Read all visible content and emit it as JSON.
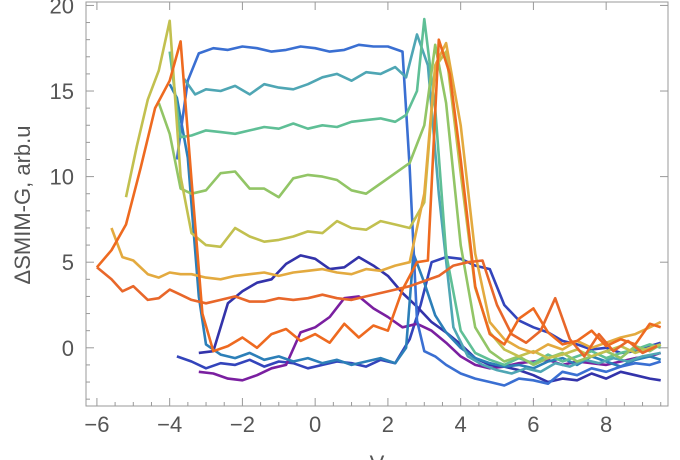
{
  "chart_data": {
    "type": "line",
    "title": "",
    "ylabel": "ΔSMIM-G, arb.u",
    "xlabel": "V",
    "xlim": [
      -6.3,
      9.7
    ],
    "ylim": [
      -3.4,
      20.2
    ],
    "xticks": [
      -6,
      -4,
      -2,
      0,
      2,
      4,
      6,
      8
    ],
    "yticks": [
      0,
      5,
      10,
      15,
      20
    ],
    "xtick_labels": [
      "−6",
      "−4",
      "−2",
      "0",
      "2",
      "4",
      "6",
      "8"
    ],
    "ytick_labels": [
      "0",
      "5",
      "10",
      "15",
      "20"
    ],
    "grid": false,
    "frame": true,
    "series": [
      {
        "color": "#3344bb",
        "x": [
          -3.8,
          -3.4,
          -3.0,
          -2.6,
          -2.2,
          -1.8,
          -1.4,
          -1.0,
          -0.6,
          -0.2,
          0.2,
          0.6,
          1.0,
          1.4,
          1.8,
          2.2,
          2.6,
          2.9,
          3.2,
          3.6,
          4.0,
          4.4,
          4.8,
          5.2,
          5.6,
          6.0,
          6.4,
          6.8,
          7.2,
          7.6,
          8.0,
          8.4,
          8.8,
          9.2,
          9.5
        ],
        "y": [
          -0.5,
          -0.8,
          -1.2,
          -0.9,
          -1.0,
          -0.7,
          -1.1,
          -0.8,
          -0.9,
          -1.2,
          -1.0,
          -0.8,
          -0.9,
          -1.1,
          -0.7,
          -0.9,
          0.5,
          2.5,
          5.0,
          5.3,
          5.2,
          4.8,
          4.6,
          2.5,
          1.6,
          1.2,
          0.9,
          0.4,
          0.2,
          -0.1,
          0.0,
          -0.3,
          -0.2,
          0.1,
          0.3
        ]
      },
      {
        "color": "#7a1fa0",
        "x": [
          -3.2,
          -2.8,
          -2.4,
          -2.0,
          -1.6,
          -1.2,
          -0.8,
          -0.4,
          0.0,
          0.4,
          0.8,
          1.2,
          1.6,
          2.0,
          2.4,
          2.8,
          3.2,
          3.6,
          4.0,
          4.4,
          4.8,
          5.2,
          5.6,
          6.0,
          6.4,
          6.8,
          7.2,
          7.6,
          8.0,
          8.4,
          8.8,
          9.2,
          9.5
        ],
        "y": [
          -1.4,
          -1.5,
          -1.8,
          -1.9,
          -1.6,
          -1.2,
          -1.0,
          0.9,
          1.2,
          1.8,
          2.9,
          3.0,
          2.3,
          1.8,
          1.2,
          1.4,
          1.0,
          0.3,
          -0.5,
          -1.0,
          -1.2,
          -1.1,
          -0.9,
          -0.8,
          -0.7,
          -1.0,
          -0.8,
          -0.9,
          -1.0,
          -0.8,
          -0.6,
          -0.5,
          -0.3
        ]
      },
      {
        "color": "#3333aa",
        "x": [
          -3.2,
          -2.8,
          -2.4,
          -2.0,
          -1.6,
          -1.2,
          -0.8,
          -0.4,
          0.0,
          0.4,
          0.8,
          1.2,
          1.6,
          2.0,
          2.4,
          2.8,
          3.2,
          3.6,
          4.0,
          4.4,
          4.8,
          5.2,
          5.6,
          6.0,
          6.4,
          6.8,
          7.2,
          7.6,
          8.0,
          8.4,
          8.8,
          9.2,
          9.5
        ],
        "y": [
          -0.3,
          -0.2,
          2.6,
          3.3,
          3.8,
          4.0,
          4.9,
          5.4,
          5.2,
          4.6,
          4.7,
          5.3,
          4.8,
          4.2,
          3.2,
          2.4,
          1.5,
          0.9,
          0.2,
          -0.6,
          -1.0,
          -1.1,
          -1.3,
          -1.6,
          -2.0,
          -1.8,
          -1.9,
          -1.5,
          -1.8,
          -1.4,
          -1.6,
          -1.8,
          -1.9
        ]
      },
      {
        "color": "#2c7fb8",
        "x": [
          -4.0,
          -3.8,
          -3.5,
          -3.2,
          -3.0,
          -2.6,
          -2.2,
          -1.8,
          -1.4,
          -1.0,
          -0.6,
          -0.2,
          0.2,
          0.6,
          1.0,
          1.4,
          1.8,
          2.2,
          2.5,
          2.7,
          3.0,
          3.3,
          3.6,
          4.0,
          4.4,
          4.8,
          5.2,
          5.6,
          6.0,
          6.4,
          6.8,
          7.2,
          7.6,
          8.0,
          8.4,
          8.8,
          9.2,
          9.5
        ],
        "y": [
          15.4,
          14.6,
          11.1,
          3.0,
          0.2,
          -0.4,
          -0.6,
          -0.3,
          -0.7,
          -0.5,
          -0.8,
          -0.6,
          -0.9,
          -0.7,
          -1.0,
          -0.8,
          -0.6,
          -0.9,
          0.0,
          5.5,
          3.8,
          1.9,
          0.9,
          0.0,
          -0.6,
          -0.9,
          -1.1,
          -1.0,
          -1.2,
          -0.8,
          -0.6,
          -1.0,
          -0.5,
          -0.8,
          -1.1,
          -0.7,
          -0.5,
          -0.7
        ]
      },
      {
        "color": "#3a6fd2",
        "x": [
          -3.8,
          -3.5,
          -3.2,
          -2.8,
          -2.4,
          -2.0,
          -1.6,
          -1.2,
          -0.8,
          -0.4,
          0.0,
          0.4,
          0.8,
          1.2,
          1.6,
          2.0,
          2.4,
          2.6,
          2.8,
          3.0,
          3.3,
          3.6,
          4.0,
          4.4,
          4.8,
          5.2,
          5.6,
          6.0,
          6.4,
          6.8,
          7.2,
          7.6,
          8.0,
          8.4,
          8.8,
          9.2,
          9.5
        ],
        "y": [
          11.0,
          15.6,
          17.2,
          17.5,
          17.4,
          17.6,
          17.5,
          17.3,
          17.4,
          17.6,
          17.5,
          17.3,
          17.4,
          17.7,
          17.6,
          17.6,
          17.3,
          10.5,
          1.6,
          -0.2,
          -0.5,
          -1.0,
          -1.5,
          -1.8,
          -2.0,
          -2.2,
          -1.8,
          -1.9,
          -2.1,
          -1.4,
          -1.6,
          -1.2,
          -1.4,
          -1.1,
          -0.9,
          -1.0,
          -0.8
        ]
      },
      {
        "color": "#4fa6b4",
        "x": [
          -3.6,
          -3.3,
          -3.0,
          -2.6,
          -2.2,
          -1.8,
          -1.4,
          -1.0,
          -0.6,
          -0.2,
          0.2,
          0.6,
          1.0,
          1.4,
          1.8,
          2.2,
          2.5,
          2.8,
          3.1,
          3.4,
          3.8,
          4.2,
          4.6,
          5.0,
          5.4,
          5.8,
          6.2,
          6.6,
          7.0,
          7.4,
          7.8,
          8.2,
          8.6,
          9.0,
          9.5
        ],
        "y": [
          15.7,
          14.8,
          15.1,
          15.0,
          15.3,
          14.8,
          15.4,
          15.2,
          15.1,
          15.4,
          15.8,
          16.0,
          15.6,
          16.1,
          16.0,
          16.4,
          15.8,
          18.3,
          16.5,
          9.0,
          1.2,
          -0.5,
          -1.0,
          -1.3,
          -1.5,
          -1.2,
          -1.4,
          -0.9,
          -1.1,
          -0.7,
          -0.9,
          -0.6,
          -0.8,
          -0.5,
          -0.3
        ]
      },
      {
        "color": "#5fbf96",
        "x": [
          -4.0,
          -3.7,
          -3.4,
          -3.0,
          -2.6,
          -2.2,
          -1.8,
          -1.4,
          -1.0,
          -0.6,
          -0.2,
          0.2,
          0.6,
          1.0,
          1.4,
          1.8,
          2.2,
          2.5,
          2.8,
          3.0,
          3.3,
          3.6,
          4.0,
          4.4,
          4.8,
          5.2,
          5.6,
          6.0,
          6.4,
          6.8,
          7.2,
          7.6,
          8.0,
          8.4,
          8.8,
          9.2,
          9.5
        ],
        "y": [
          17.3,
          12.3,
          12.4,
          12.7,
          12.6,
          12.5,
          12.7,
          12.9,
          12.8,
          13.1,
          12.8,
          13.0,
          12.9,
          13.2,
          13.3,
          13.4,
          13.2,
          13.6,
          15.0,
          19.2,
          14.0,
          5.5,
          1.0,
          -0.3,
          -0.7,
          -1.0,
          -0.6,
          -0.9,
          -0.4,
          -0.8,
          -0.5,
          -0.2,
          -0.6,
          -0.3,
          -0.1,
          0.2,
          0.0
        ]
      },
      {
        "color": "#92c566",
        "x": [
          -4.3,
          -4.0,
          -3.7,
          -3.4,
          -3.0,
          -2.6,
          -2.2,
          -1.8,
          -1.4,
          -1.0,
          -0.6,
          -0.2,
          0.2,
          0.6,
          1.0,
          1.4,
          1.8,
          2.2,
          2.6,
          3.0,
          3.3,
          3.6,
          4.0,
          4.4,
          4.8,
          5.2,
          5.6,
          6.0,
          6.4,
          6.8,
          7.2,
          7.6,
          8.0,
          8.4,
          8.8,
          9.2,
          9.5
        ],
        "y": [
          14.3,
          12.5,
          9.3,
          9.0,
          9.2,
          10.2,
          10.3,
          9.3,
          9.3,
          8.8,
          9.9,
          10.1,
          10.0,
          9.8,
          9.2,
          9.0,
          9.6,
          10.2,
          10.8,
          13.0,
          17.7,
          14.3,
          6.0,
          1.2,
          -0.2,
          -0.8,
          -0.5,
          -1.0,
          -0.6,
          -0.3,
          -0.8,
          -0.5,
          -0.2,
          -0.6,
          0.1,
          -0.2,
          0.2
        ]
      },
      {
        "color": "#c2c04f",
        "x": [
          -5.2,
          -4.9,
          -4.6,
          -4.3,
          -4.0,
          -3.7,
          -3.4,
          -3.0,
          -2.6,
          -2.2,
          -1.8,
          -1.4,
          -1.0,
          -0.6,
          -0.2,
          0.2,
          0.6,
          1.0,
          1.4,
          1.8,
          2.2,
          2.6,
          3.0,
          3.3,
          3.6,
          4.0,
          4.4,
          4.8,
          5.2,
          5.6,
          6.0,
          6.4,
          6.8,
          7.2,
          7.6,
          8.0,
          8.4,
          8.8,
          9.2,
          9.5
        ],
        "y": [
          8.8,
          11.8,
          14.5,
          16.2,
          19.1,
          10.0,
          6.7,
          6.0,
          5.9,
          7.0,
          6.5,
          6.2,
          6.3,
          6.5,
          6.8,
          6.7,
          7.4,
          7.0,
          6.9,
          7.4,
          7.2,
          7.0,
          8.5,
          16.4,
          17.3,
          10.2,
          3.5,
          0.9,
          -0.1,
          -0.5,
          -0.2,
          -0.6,
          -0.4,
          -0.1,
          -0.5,
          -0.2,
          0.1,
          -0.3,
          0.0,
          0.2
        ]
      },
      {
        "color": "#e3aa3f",
        "x": [
          -5.6,
          -5.3,
          -5.0,
          -4.6,
          -4.3,
          -4.0,
          -3.7,
          -3.4,
          -3.0,
          -2.6,
          -2.2,
          -1.8,
          -1.4,
          -1.0,
          -0.6,
          -0.2,
          0.2,
          0.6,
          1.0,
          1.4,
          1.8,
          2.2,
          2.6,
          3.0,
          3.3,
          3.6,
          4.0,
          4.4,
          4.8,
          5.2,
          5.6,
          6.0,
          6.4,
          6.8,
          7.2,
          7.6,
          8.0,
          8.4,
          8.8,
          9.2,
          9.5
        ],
        "y": [
          7.0,
          5.3,
          5.1,
          4.3,
          4.1,
          4.4,
          4.3,
          4.3,
          4.1,
          4.0,
          4.2,
          4.3,
          4.4,
          4.2,
          4.4,
          4.5,
          4.6,
          4.4,
          4.3,
          4.6,
          4.5,
          4.8,
          5.0,
          9.0,
          16.5,
          17.8,
          13.0,
          5.5,
          1.5,
          0.5,
          0.0,
          -0.3,
          0.2,
          -0.1,
          0.4,
          0.0,
          0.3,
          0.6,
          0.8,
          1.2,
          1.5
        ]
      },
      {
        "color": "#e8672a",
        "x": [
          -6.0,
          -5.6,
          -5.3,
          -5.0,
          -4.6,
          -4.3,
          -4.0,
          -3.7,
          -3.4,
          -3.0,
          -2.6,
          -2.2,
          -1.8,
          -1.4,
          -1.0,
          -0.6,
          -0.2,
          0.2,
          0.6,
          1.0,
          1.4,
          1.8,
          2.2,
          2.6,
          3.0,
          3.4,
          3.8,
          4.2,
          4.6,
          5.0,
          5.4,
          5.8,
          6.2,
          6.6,
          7.0,
          7.4,
          7.8,
          8.2,
          8.6,
          9.0,
          9.4
        ],
        "y": [
          4.7,
          4.0,
          3.3,
          3.6,
          2.8,
          2.9,
          3.4,
          3.1,
          2.8,
          2.6,
          2.8,
          3.0,
          2.7,
          2.7,
          2.9,
          2.8,
          2.9,
          3.1,
          2.9,
          2.8,
          3.0,
          3.2,
          3.4,
          3.6,
          3.9,
          4.2,
          4.8,
          5.0,
          5.1,
          2.5,
          0.8,
          0.3,
          1.0,
          2.9,
          0.5,
          -0.5,
          0.8,
          -0.2,
          0.4,
          -0.3,
          0.1
        ]
      },
      {
        "color": "#ee6a20",
        "x": [
          -6.0,
          -5.6,
          -5.2,
          -4.8,
          -4.4,
          -4.0,
          -3.7,
          -3.4,
          -3.1,
          -2.8,
          -2.4,
          -2.0,
          -1.6,
          -1.2,
          -0.8,
          -0.4,
          0.0,
          0.4,
          0.8,
          1.2,
          1.6,
          2.0,
          2.4,
          2.8,
          3.1,
          3.4,
          3.7,
          4.0,
          4.4,
          4.8,
          5.2,
          5.6,
          6.0,
          6.4,
          6.8,
          7.2,
          7.6,
          8.0,
          8.4,
          8.8,
          9.2,
          9.5
        ],
        "y": [
          4.7,
          5.7,
          7.2,
          10.5,
          14.0,
          15.6,
          17.9,
          9.8,
          2.0,
          -0.2,
          0.1,
          0.6,
          0.0,
          0.8,
          1.1,
          0.4,
          0.8,
          0.3,
          1.4,
          0.6,
          1.3,
          1.0,
          3.4,
          5.0,
          5.1,
          18.0,
          16.0,
          11.0,
          3.6,
          0.8,
          0.2,
          1.7,
          2.3,
          0.9,
          0.2,
          0.4,
          1.0,
          0.1,
          0.5,
          0.2,
          1.4,
          1.2
        ]
      }
    ]
  }
}
